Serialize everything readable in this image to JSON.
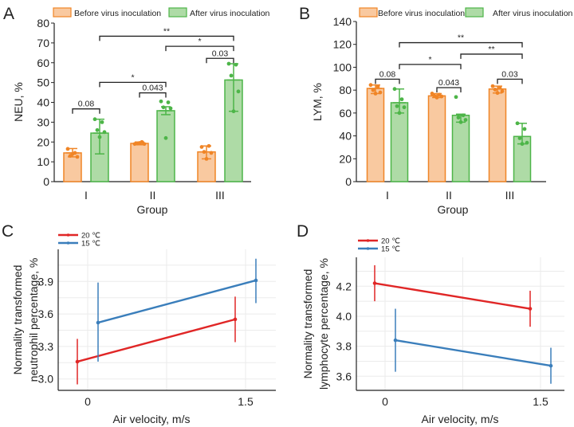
{
  "colors": {
    "before_stroke": "#F08526",
    "before_fill": "#F9C9A0",
    "after_stroke": "#4DB548",
    "after_fill": "#AEDBA6",
    "red": "#E02626",
    "blue": "#3A7EBB",
    "axis": "#222222",
    "grid": "#EBEBEB"
  },
  "chart_data": [
    {
      "panel_label": "A",
      "type": "bar",
      "categories": [
        "I",
        "II",
        "III"
      ],
      "xlabel": "Group",
      "ylabel": "NEU, %",
      "ylim": [
        0,
        80
      ],
      "yticks": [
        0,
        10,
        20,
        30,
        40,
        50,
        60,
        70,
        80
      ],
      "legend_position": "top",
      "series": [
        {
          "name": "Before virus inoculation",
          "values": [
            14.5,
            19.3,
            15.0
          ],
          "error": [
            [
              12.5,
              16.7
            ],
            [
              18.6,
              20.0
            ],
            [
              11.5,
              18.0
            ]
          ],
          "points": [
            [
              16.5,
              14.5,
              13.0,
              12.5,
              14.0
            ],
            [
              19.0,
              20.0,
              19.2,
              19.0,
              19.5
            ],
            [
              17.5,
              18.0,
              15.0,
              14.5,
              11.5
            ]
          ]
        },
        {
          "name": "After virus inoculation",
          "values": [
            24.5,
            35.8,
            51.3
          ],
          "error": [
            [
              14.0,
              31.5
            ],
            [
              33.8,
              37.8
            ],
            [
              35.5,
              59.5
            ]
          ],
          "points": [
            [
              31.5,
              30.0,
              26.0,
              25.0,
              22.5
            ],
            [
              40.5,
              40.0,
              37.5,
              37.0,
              22.0
            ],
            [
              59.5,
              59.0,
              53.5,
              45.5,
              35.5
            ]
          ]
        }
      ],
      "comparisons": [
        {
          "between": [
            [
              0,
              0
            ],
            [
              0,
              1
            ]
          ],
          "label": "0.08",
          "y": 36.7
        },
        {
          "between": [
            [
              1,
              0
            ],
            [
              1,
              1
            ]
          ],
          "label": "0.043",
          "y": 44.8
        },
        {
          "between": [
            [
              0,
              1
            ],
            [
              1,
              1
            ]
          ],
          "label": "*",
          "y": 50.1
        },
        {
          "between": [
            [
              2,
              0
            ],
            [
              2,
              1
            ]
          ],
          "label": "0.03",
          "y": 62.2
        },
        {
          "between": [
            [
              1,
              1
            ],
            [
              2,
              1
            ]
          ],
          "label": "*",
          "y": 68.3
        },
        {
          "between": [
            [
              0,
              1
            ],
            [
              2,
              1
            ]
          ],
          "label": "**",
          "y": 73.4
        }
      ]
    },
    {
      "panel_label": "B",
      "type": "bar",
      "categories": [
        "I",
        "II",
        "III"
      ],
      "xlabel": "Group",
      "ylabel": "LYM, %",
      "ylim": [
        0,
        140
      ],
      "yticks": [
        0,
        20,
        40,
        60,
        80,
        100,
        120,
        140
      ],
      "legend_position": "top",
      "series": [
        {
          "name": "Before virus inoculation",
          "values": [
            81.5,
            75.0,
            81.0
          ],
          "error": [
            [
              77.0,
              84.5
            ],
            [
              73.5,
              77.0
            ],
            [
              77.5,
              83.5
            ]
          ],
          "points": [
            [
              84.5,
              83.0,
              80.0,
              78.0,
              77.0
            ],
            [
              77.0,
              76.0,
              75.0,
              74.5,
              73.5
            ],
            [
              83.5,
              82.0,
              80.5,
              79.0,
              77.5
            ]
          ]
        },
        {
          "name": "After virus inoculation",
          "values": [
            69.0,
            58.0,
            39.5
          ],
          "error": [
            [
              60.0,
              81.0
            ],
            [
              52.0,
              59.0
            ],
            [
              33.0,
              51.0
            ]
          ],
          "points": [
            [
              81.0,
              72.0,
              66.0,
              65.0,
              60.0
            ],
            [
              74.0,
              58.0,
              56.0,
              54.0,
              52.0
            ],
            [
              51.0,
              46.0,
              38.0,
              34.0,
              33.0
            ]
          ]
        }
      ],
      "comparisons": [
        {
          "between": [
            [
              0,
              0
            ],
            [
              0,
              1
            ]
          ],
          "label": "0.08",
          "y": 89.6
        },
        {
          "between": [
            [
              1,
              0
            ],
            [
              1,
              1
            ]
          ],
          "label": "0.043",
          "y": 82.2
        },
        {
          "between": [
            [
              2,
              0
            ],
            [
              2,
              1
            ]
          ],
          "label": "0.03",
          "y": 89.6
        },
        {
          "between": [
            [
              0,
              1
            ],
            [
              1,
              1
            ]
          ],
          "label": "*",
          "y": 102.5
        },
        {
          "between": [
            [
              1,
              1
            ],
            [
              2,
              1
            ]
          ],
          "label": "**",
          "y": 111.5
        },
        {
          "between": [
            [
              0,
              1
            ],
            [
              2,
              1
            ]
          ],
          "label": "**",
          "y": 121.5
        }
      ]
    },
    {
      "panel_label": "C",
      "type": "line",
      "xlabel": "Air velocity, m/s",
      "ylabel": [
        "Normality transformed",
        "neutrophil percentage, %"
      ],
      "xticks": [
        "0",
        "1.5"
      ],
      "yticks": [
        "3.0",
        "3.3",
        "3.6",
        "3.9"
      ],
      "grid": true,
      "legend_position": "top-left",
      "series": [
        {
          "name": "20 ℃",
          "color_key": "red",
          "x": [
            0,
            1.5
          ],
          "y": [
            3.16,
            3.55
          ],
          "ci": [
            [
              2.95,
              3.37
            ],
            [
              3.34,
              3.76
            ]
          ]
        },
        {
          "name": "15 ℃",
          "color_key": "blue",
          "x": [
            0,
            1.5
          ],
          "y": [
            3.52,
            3.91
          ],
          "ci": [
            [
              3.16,
              3.89
            ],
            [
              3.7,
              4.11
            ]
          ]
        }
      ]
    },
    {
      "panel_label": "D",
      "type": "line",
      "xlabel": "Air velocity, m/s",
      "ylabel": [
        "Normality transformed",
        "lymphocyte percentage, %"
      ],
      "xticks": [
        "0",
        "1.5"
      ],
      "yticks": [
        "3.6",
        "3.8",
        "4.0",
        "4.2"
      ],
      "grid": true,
      "legend_position": "top-left",
      "series": [
        {
          "name": "20 ℃",
          "color_key": "red",
          "x": [
            0,
            1.5
          ],
          "y": [
            4.22,
            4.05
          ],
          "ci": [
            [
              4.1,
              4.34
            ],
            [
              3.93,
              4.17
            ]
          ]
        },
        {
          "name": "15 ℃",
          "color_key": "blue",
          "x": [
            0,
            1.5
          ],
          "y": [
            3.84,
            3.67
          ],
          "ci": [
            [
              3.63,
              4.05
            ],
            [
              3.55,
              3.79
            ]
          ]
        }
      ]
    }
  ]
}
